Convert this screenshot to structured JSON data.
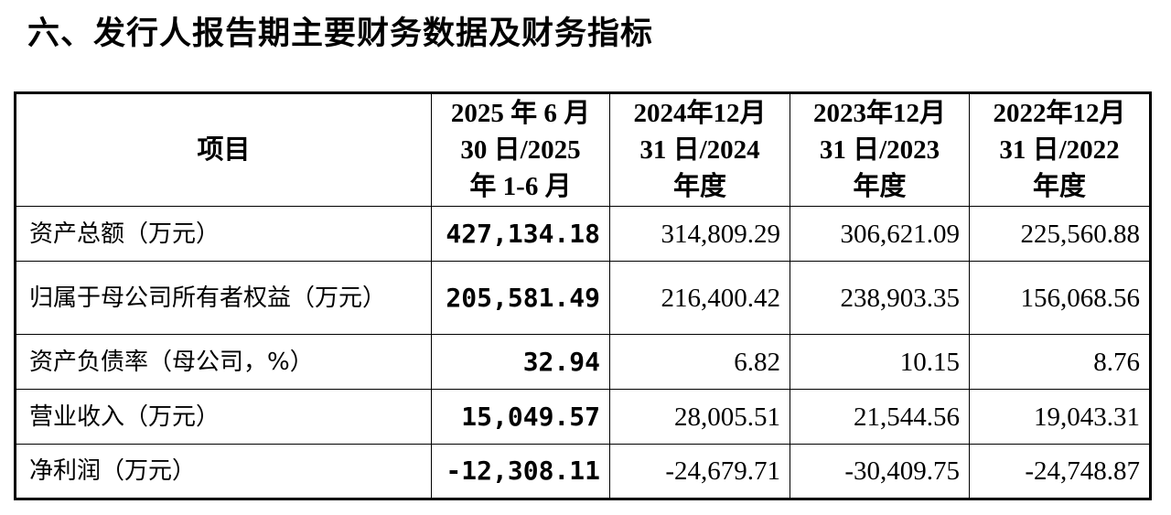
{
  "header": {
    "title": "六、发行人报告期主要财务数据及财务指标"
  },
  "table": {
    "columns": [
      [
        "项目"
      ],
      [
        "2025 年 6 月",
        "30 日/2025",
        "年 1-6 月"
      ],
      [
        "2024年12月",
        "31 日/2024",
        "年度"
      ],
      [
        "2023年12月",
        "31 日/2023",
        "年度"
      ],
      [
        "2022年12月",
        "31 日/2022",
        "年度"
      ]
    ],
    "rows": [
      [
        "资产总额（万元）",
        "427,134.18",
        "314,809.29",
        "306,621.09",
        "225,560.88"
      ],
      [
        "归属于母公司所有者权益（万元）",
        "205,581.49",
        "216,400.42",
        "238,903.35",
        "156,068.56"
      ],
      [
        "资产负债率（母公司，%）",
        "32.94",
        "6.82",
        "10.15",
        "8.76"
      ],
      [
        "营业收入（万元）",
        "15,049.57",
        "28,005.51",
        "21,544.56",
        "19,043.31"
      ],
      [
        "净利润（万元）",
        "-12,308.11",
        "-24,679.71",
        "-30,409.75",
        "-24,748.87"
      ]
    ]
  }
}
